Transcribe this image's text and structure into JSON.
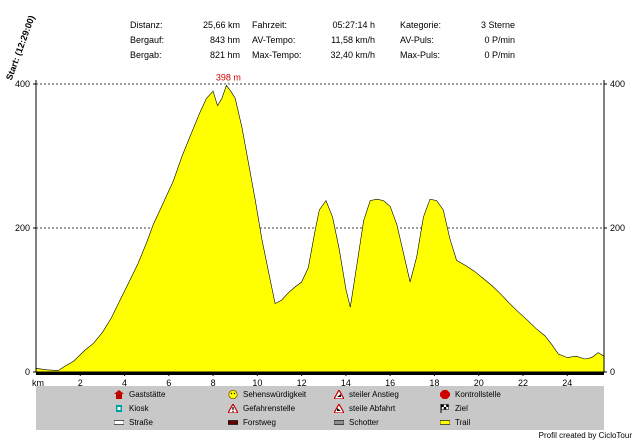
{
  "stats": {
    "distanz_label": "Distanz:",
    "distanz_value": "25,66 km",
    "bergauf_label": "Bergauf:",
    "bergauf_value": "843 hm",
    "bergab_label": "Bergab:",
    "bergab_value": "821 hm",
    "fahrzeit_label": "Fahrzeit:",
    "fahrzeit_value": "05:27:14 h",
    "avtempo_label": "AV-Tempo:",
    "avtempo_value": "11,58 km/h",
    "maxtempo_label": "Max-Tempo:",
    "maxtempo_value": "32,40 km/h",
    "kategorie_label": "Kategorie:",
    "kategorie_value": "3 Sterne",
    "avpuls_label": "AV-Puls:",
    "avpuls_value": "0 P/min",
    "maxpuls_label": "Max-Puls:",
    "maxpuls_value": "0 P/min"
  },
  "start_label": "Start: (12:29:00)",
  "legend": {
    "gaststaette": "Gaststätte",
    "sehenswuerdigkeit": "Sehenswürdigkeit",
    "steiler_anstieg": "steiler Anstieg",
    "kontrollstelle": "Kontrollstelle",
    "kiosk": "Kiosk",
    "gefahrenstelle": "Gefahrenstelle",
    "steile_abfahrt": "steile Abfahrt",
    "ziel": "Ziel",
    "strasse": "Straße",
    "forstweg": "Forstweg",
    "schotter": "Schotter",
    "trail": "Trail"
  },
  "credit": "Profil created by CicloTour",
  "colors": {
    "fill": "#ffff00",
    "peak_label": "#cc0000",
    "grid": "#000000"
  },
  "chart_data": {
    "type": "area",
    "xlabel": "km",
    "ylabel": "",
    "xlim": [
      0,
      25.66
    ],
    "ylim": [
      0,
      400
    ],
    "x_ticks": [
      2,
      4,
      6,
      8,
      10,
      12,
      14,
      16,
      18,
      20,
      22,
      24
    ],
    "y_ticks": [
      0,
      200,
      400
    ],
    "gridlines_y": [
      200,
      400
    ],
    "peak_annotation": "398 m",
    "series": [
      {
        "x": [
          0,
          0.5,
          1.0,
          1.3,
          1.7,
          2.2,
          2.6,
          3.0,
          3.4,
          3.8,
          4.2,
          4.6,
          5.0,
          5.3,
          5.6,
          5.9,
          6.2,
          6.6,
          7.0,
          7.4,
          7.7,
          8.0,
          8.2,
          8.4,
          8.6,
          8.8,
          9.0,
          9.3,
          9.6,
          9.9,
          10.2,
          10.5,
          10.8,
          11.1,
          11.4,
          11.7,
          12.0,
          12.3,
          12.6,
          12.8,
          13.1,
          13.4,
          13.7,
          14.0,
          14.2,
          14.5,
          14.8,
          15.1,
          15.4,
          15.7,
          16.0,
          16.3,
          16.6,
          16.9,
          17.2,
          17.5,
          17.8,
          18.1,
          18.4,
          18.7,
          19.0,
          19.4,
          19.8,
          20.2,
          20.6,
          21.0,
          21.4,
          21.8,
          22.2,
          22.6,
          23.0,
          23.3,
          23.6,
          24.0,
          24.4,
          24.8,
          25.1,
          25.4,
          25.66
        ],
        "y": [
          5,
          3,
          2,
          8,
          15,
          30,
          40,
          55,
          75,
          100,
          125,
          150,
          180,
          205,
          225,
          245,
          265,
          300,
          330,
          360,
          380,
          390,
          370,
          380,
          398,
          390,
          380,
          340,
          290,
          240,
          185,
          140,
          95,
          100,
          110,
          118,
          125,
          145,
          195,
          225,
          238,
          215,
          170,
          115,
          90,
          150,
          210,
          238,
          240,
          238,
          230,
          205,
          165,
          125,
          160,
          215,
          240,
          238,
          225,
          185,
          155,
          148,
          140,
          130,
          120,
          108,
          95,
          83,
          72,
          60,
          50,
          38,
          25,
          20,
          22,
          18,
          20,
          27,
          22
        ]
      }
    ]
  }
}
